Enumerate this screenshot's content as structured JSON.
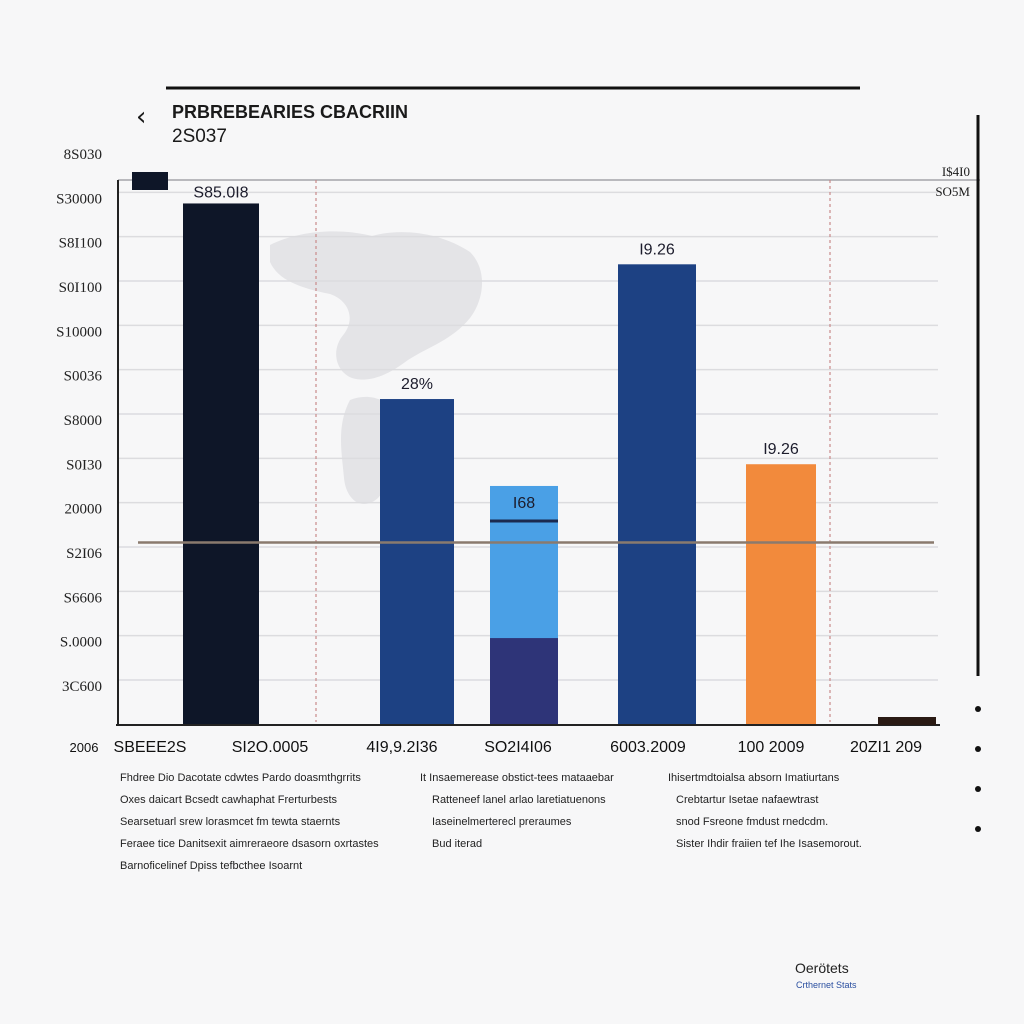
{
  "header": {
    "back_glyph": "‹",
    "title": "PRBREBEARIES CBACRIIN",
    "subtitle": "2S037"
  },
  "chart_data": {
    "type": "bar",
    "title": "PRBREBEARIES CBACRIIN",
    "subtitle": "2S037",
    "xlabel": "",
    "ylabel": "",
    "ylim": [
      0,
      13
    ],
    "grid": true,
    "y_ticks": [
      "8S030",
      "S30000",
      "S8I100",
      "S0I100",
      "S10000",
      "S0036",
      "S8000",
      "S0I30",
      "20000",
      "S2I06",
      "S6606",
      "S.0000",
      "3C600"
    ],
    "right_axis_labels": [
      "I$4I0",
      "SO5M"
    ],
    "x_ticks": [
      "2006",
      "SBEEE2S",
      "SI2O.0005",
      "4I9,9.2I36",
      "SO2I4I06",
      "6003.2009",
      "100 2009",
      "20ZI1 209"
    ],
    "categories": [
      "SBEEE2S",
      "SI2O.0005",
      "4I9,9.2I36",
      "SO2I4I06",
      "6003.2009",
      "100 2009"
    ],
    "series": [
      {
        "values": [
          12.0,
          0,
          7.5,
          5.5,
          10.6,
          6.0
        ]
      }
    ],
    "stack_lower": [
      0,
      0,
      0,
      2.0,
      0,
      0
    ],
    "data_labels": [
      "S85.0I8",
      "",
      "28%",
      "I68",
      "I9.26",
      "I9.26"
    ],
    "reference_line": 4.2,
    "colors": {
      "bar_1": "#0e1628",
      "bar_3": "#1d4183",
      "bar_4_top": "#4aa0e6",
      "bar_4_bottom": "#2e3478",
      "bar_5": "#1d4183",
      "bar_6": "#f28a3c",
      "reference_line": "#8a7a6e",
      "dashed_marker": "#c98a8a"
    }
  },
  "notes": {
    "col1": [
      "Fhdree Dio Dacotate cdwtes Pardo doasmthgrrits",
      "Oxes daicart Bcsedt cawhaphat Frerturbests",
      "Searsetuarl srew lorasmcet fm tewta staernts",
      "Feraee tice Danitsexit aimreraeore dsasorn oxrtastes",
      "Barnoficelinef Dpiss tefbcthee Isoarnt"
    ],
    "col2": [
      "It Insaemerease obstict-tees mataaebar",
      "Ratteneef lanel arlao laretiatuenons",
      "Iaseinelmerterecl preraumes",
      "Bud iterad"
    ],
    "col3": [
      "Ihisertmdtoialsa absorn Imatiurtans",
      "Crebtartur Isetae nafaewtrast",
      "snod Fsreone fmdust rnedcdm.",
      "Sister Ihdir fraiien tef Ihe Isasemorout."
    ]
  },
  "footer": {
    "line1": "Oerötets",
    "line2": "Crthernet Stats"
  }
}
